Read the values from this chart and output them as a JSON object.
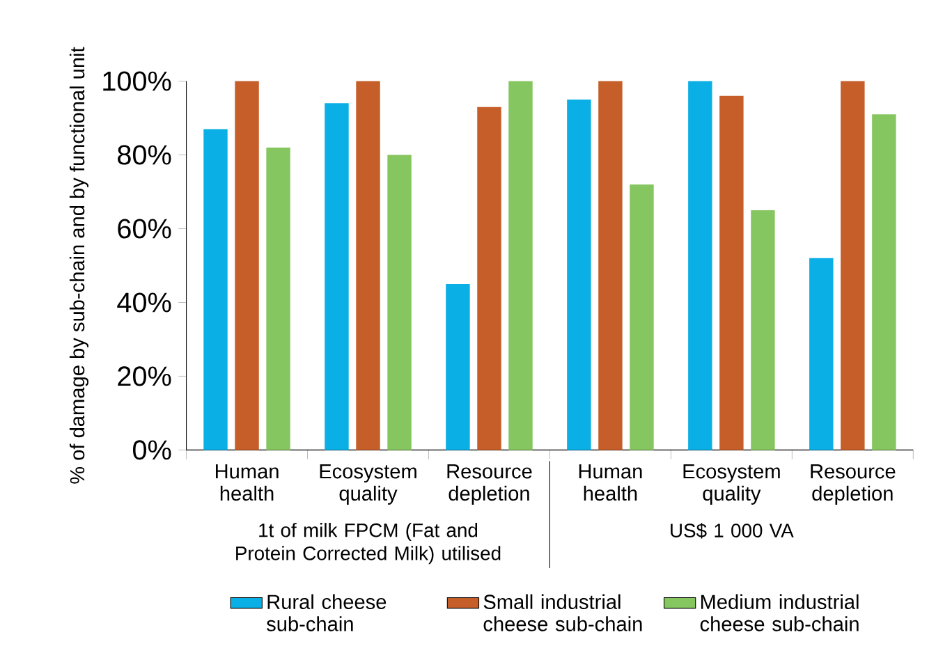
{
  "chart_data": {
    "type": "bar",
    "ylabel": "% of damage by sub-chain and by functional unit",
    "categories": [
      "Human health",
      "Ecosystem quality",
      "Resource depletion",
      "Human health",
      "Ecosystem quality",
      "Resource depletion"
    ],
    "series": [
      {
        "name": "Rural cheese sub-chain",
        "color": "#0aafe6",
        "values": [
          87,
          94,
          45,
          95,
          100,
          52
        ]
      },
      {
        "name": "Small industrial cheese sub-chain",
        "color": "#c55e28",
        "values": [
          100,
          100,
          93,
          100,
          96,
          100
        ]
      },
      {
        "name": "Medium industrial cheese sub-chain",
        "color": "#86c660",
        "values": [
          82,
          80,
          100,
          72,
          65,
          91
        ]
      }
    ],
    "ylim": [
      0,
      100
    ],
    "yticks": [
      {
        "value": 0,
        "label": "0%"
      },
      {
        "value": 20,
        "label": "20%"
      },
      {
        "value": 40,
        "label": "40%"
      },
      {
        "value": 60,
        "label": "60%"
      },
      {
        "value": 80,
        "label": "80%"
      },
      {
        "value": 100,
        "label": "100%"
      }
    ],
    "annotations": [
      "1t of milk FPCM (Fat and Protein Corrected Milk) utilised",
      "US$ 1 000 VA"
    ],
    "legend": "bottom"
  }
}
